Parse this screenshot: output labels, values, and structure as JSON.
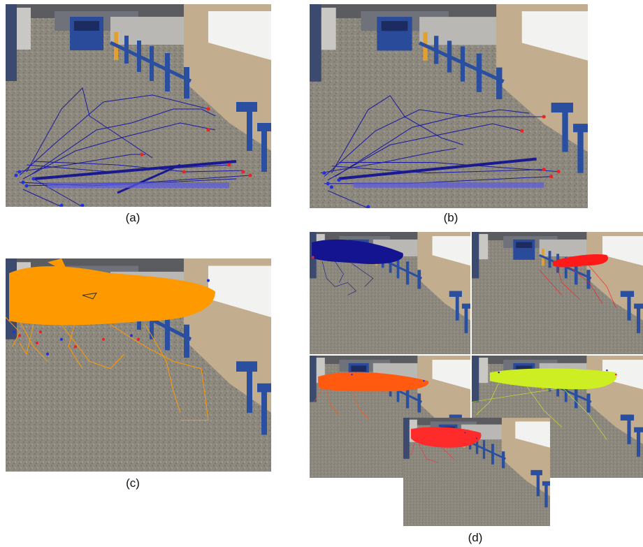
{
  "figure": {
    "captions": {
      "a": "(a)",
      "b": "(b)",
      "c": "(c)",
      "d": "(d)"
    },
    "track_colors": {
      "a": "#1a1aa0",
      "b": "#1a1aa0",
      "c": "#ff9900",
      "d1": "#141490",
      "d2": "#ff1a1a",
      "d3": "#ff5a10",
      "d4": "#ccee22",
      "d5": "#ff2a2a"
    },
    "endpoint_colors": {
      "start": "#2233dd",
      "end": "#ee2222"
    },
    "scene": "subway-station-concourse"
  }
}
